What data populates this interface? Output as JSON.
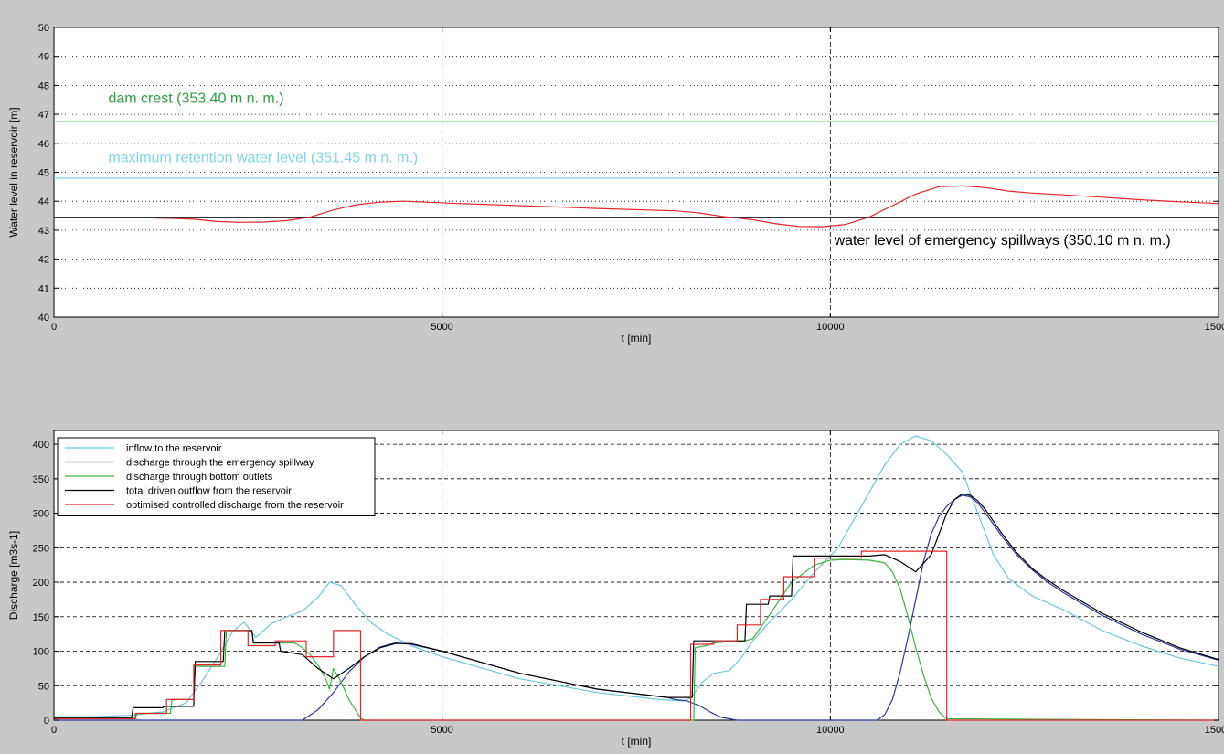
{
  "figure": {
    "background": "#c8c8c8"
  },
  "chart_data": [
    {
      "type": "line",
      "title": "",
      "xlabel": "t [min]",
      "ylabel": "Water level in reservoir [m]",
      "xlim": [
        0,
        15000
      ],
      "ylim": [
        40,
        50
      ],
      "x_ticks": [
        0,
        5000,
        10000,
        15000
      ],
      "y_ticks": [
        40,
        41,
        42,
        43,
        44,
        45,
        46,
        47,
        48,
        49,
        50
      ],
      "x_grid": "dashed",
      "y_grid": "dotted",
      "reference_lines": [
        {
          "label": "dam crest (353.40 m n. m.)",
          "y": 46.75,
          "color": "#7fc97f",
          "label_color": "#2e9e3e",
          "label_x": 700,
          "label_y": 47.4
        },
        {
          "label": "maximum retention water level (351.45 m n. m.)",
          "y": 44.8,
          "color": "#7fd4e6",
          "label_color": "#7fd4e6",
          "label_x": 700,
          "label_y": 45.35
        },
        {
          "label": "water level of emergency spillways (350.10 m n. m.)",
          "y": 43.45,
          "color": "#333333",
          "label_color": "#000000",
          "label_x": 10050,
          "label_y": 42.5
        }
      ],
      "series": [
        {
          "color": "#e0262a",
          "x": [
            1300,
            1500,
            1800,
            2100,
            2400,
            2700,
            3000,
            3300,
            3600,
            3900,
            4200,
            4500,
            4800,
            5200,
            6000,
            7000,
            8000,
            8300,
            8600,
            9000,
            9300,
            9600,
            9900,
            10200,
            10500,
            10800,
            11100,
            11400,
            11700,
            12000,
            12300,
            12600,
            13000,
            13500,
            14000,
            14500,
            15000
          ],
          "y": [
            43.42,
            43.41,
            43.38,
            43.3,
            43.27,
            43.28,
            43.33,
            43.45,
            43.7,
            43.88,
            43.97,
            44.0,
            43.97,
            43.92,
            43.85,
            43.75,
            43.67,
            43.6,
            43.48,
            43.36,
            43.22,
            43.13,
            43.12,
            43.2,
            43.45,
            43.85,
            44.25,
            44.5,
            44.53,
            44.47,
            44.35,
            44.28,
            44.22,
            44.14,
            44.05,
            43.98,
            43.92
          ]
        }
      ]
    },
    {
      "type": "line",
      "title": "",
      "xlabel": "t [min]",
      "ylabel": "Discharge [m3s-1]",
      "xlim": [
        0,
        15000
      ],
      "ylim": [
        0,
        420
      ],
      "x_ticks": [
        0,
        5000,
        10000,
        15000
      ],
      "y_ticks": [
        0,
        50,
        100,
        150,
        200,
        250,
        300,
        350,
        400
      ],
      "x_grid": "dashed",
      "y_grid": "dashed",
      "legend": "top-left",
      "series": [
        {
          "name": "inflow to the reservoir",
          "color": "#6cc6dc",
          "x": [
            0,
            500,
            1000,
            1400,
            1700,
            1900,
            2100,
            2300,
            2450,
            2600,
            2800,
            3000,
            3200,
            3400,
            3550,
            3700,
            3900,
            4100,
            4300,
            4600,
            5000,
            6000,
            7000,
            7800,
            8100,
            8200,
            8350,
            8500,
            8700,
            8850,
            9000,
            9200,
            9500,
            9800,
            10100,
            10400,
            10700,
            10900,
            11100,
            11300,
            11500,
            11700,
            11900,
            12100,
            12300,
            12600,
            13000,
            13500,
            14000,
            14500,
            15000
          ],
          "y": [
            5,
            5,
            7,
            12,
            25,
            55,
            90,
            128,
            142,
            120,
            140,
            150,
            158,
            178,
            200,
            195,
            165,
            140,
            125,
            108,
            92,
            60,
            40,
            30,
            28,
            32,
            55,
            68,
            72,
            90,
            115,
            140,
            175,
            215,
            250,
            310,
            370,
            400,
            412,
            405,
            385,
            360,
            300,
            240,
            205,
            180,
            160,
            130,
            108,
            90,
            78
          ]
        },
        {
          "name": "discharge through the emergency spillway",
          "color": "#2b3a99",
          "x": [
            0,
            3200,
            3400,
            3600,
            3800,
            4000,
            4200,
            4400,
            4600,
            5000,
            6000,
            7000,
            7900,
            8000,
            8150,
            8300,
            8450,
            8600,
            8800,
            10600,
            10700,
            10800,
            10900,
            11000,
            11100,
            11200,
            11300,
            11400,
            11500,
            11600,
            11700,
            11800,
            11900,
            12000,
            12200,
            12400,
            12600,
            12800,
            13000,
            13500,
            14000,
            14500,
            15000
          ],
          "y": [
            0,
            0,
            15,
            40,
            70,
            92,
            106,
            112,
            110,
            100,
            68,
            45,
            33,
            30,
            28,
            22,
            12,
            4,
            0,
            0,
            8,
            30,
            70,
            120,
            175,
            230,
            270,
            295,
            310,
            320,
            326,
            324,
            315,
            300,
            268,
            240,
            218,
            200,
            185,
            152,
            125,
            103,
            87
          ]
        },
        {
          "name": "discharge through bottom outlets",
          "color": "#3db33d",
          "x": [
            0,
            1050,
            1070,
            1500,
            1520,
            1800,
            1820,
            2200,
            2220,
            2550,
            2570,
            3100,
            3200,
            3300,
            3400,
            3500,
            3550,
            3600,
            3700,
            3800,
            3900,
            3950,
            4000,
            7500,
            8000,
            8200,
            8240,
            8260,
            8400,
            8500,
            8700,
            8900,
            9000,
            9200,
            9500,
            9800,
            10000,
            10200,
            10500,
            10700,
            10800,
            10900,
            11000,
            11100,
            11200,
            11300,
            11400,
            11500,
            15000
          ],
          "y": [
            3,
            3,
            10,
            10,
            30,
            30,
            78,
            78,
            128,
            128,
            112,
            112,
            105,
            95,
            80,
            60,
            45,
            75,
            55,
            30,
            12,
            3,
            0,
            0,
            0,
            0,
            0,
            105,
            108,
            112,
            114,
            115,
            118,
            150,
            200,
            225,
            232,
            233,
            232,
            228,
            215,
            190,
            150,
            105,
            65,
            32,
            12,
            2,
            0
          ]
        },
        {
          "name": "total driven outflow from the reservoir",
          "color": "#000000",
          "x": [
            0,
            1000,
            1020,
            1400,
            1420,
            1800,
            1820,
            2180,
            2200,
            2550,
            2570,
            2900,
            2920,
            3200,
            3400,
            3600,
            3800,
            4000,
            4200,
            4400,
            4600,
            5000,
            6000,
            7000,
            7900,
            8220,
            8240,
            8900,
            8920,
            9200,
            9220,
            9500,
            9520,
            10000,
            10300,
            10500,
            10700,
            10900,
            11100,
            11300,
            11500,
            11600,
            11700,
            11800,
            11900,
            12000,
            12200,
            12400,
            12600,
            12800,
            13000,
            13500,
            14000,
            14500,
            15000
          ],
          "y": [
            3,
            3,
            18,
            18,
            20,
            20,
            85,
            85,
            130,
            130,
            112,
            112,
            100,
            95,
            75,
            60,
            75,
            92,
            105,
            111,
            111,
            100,
            68,
            45,
            33,
            33,
            115,
            115,
            168,
            168,
            180,
            180,
            238,
            238,
            238,
            238,
            240,
            230,
            215,
            240,
            300,
            320,
            328,
            326,
            318,
            305,
            272,
            243,
            220,
            203,
            188,
            155,
            128,
            105,
            88
          ]
        },
        {
          "name": "optimised controlled discharge from the reservoir",
          "color": "#e0262a",
          "x": [
            0,
            1050,
            1050,
            1450,
            1450,
            1800,
            1800,
            2150,
            2150,
            2500,
            2500,
            2850,
            2850,
            3250,
            3250,
            3600,
            3600,
            3950,
            3950,
            8200,
            8200,
            8500,
            8500,
            8800,
            8800,
            9100,
            9100,
            9400,
            9400,
            9800,
            9800,
            10400,
            10400,
            11500,
            11500,
            15000
          ],
          "y": [
            2,
            2,
            10,
            10,
            30,
            30,
            80,
            80,
            130,
            130,
            108,
            108,
            115,
            115,
            92,
            92,
            130,
            130,
            0,
            0,
            110,
            110,
            115,
            115,
            138,
            138,
            175,
            175,
            208,
            208,
            235,
            235,
            245,
            245,
            0,
            0
          ]
        }
      ]
    }
  ]
}
